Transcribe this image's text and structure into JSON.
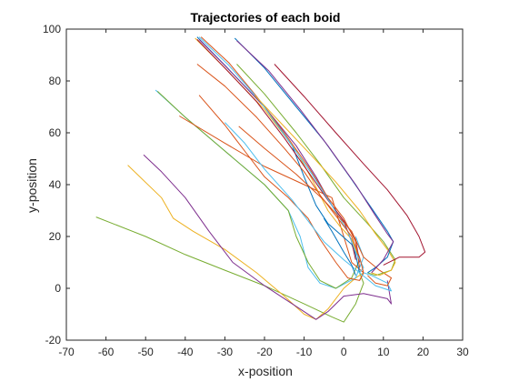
{
  "chart_data": {
    "type": "line",
    "title": "Trajectories of each boid",
    "xlabel": "x-position",
    "ylabel": "y-position",
    "xlim": [
      -70,
      30
    ],
    "ylim": [
      -20,
      100
    ],
    "xticks": [
      -70,
      -60,
      -50,
      -40,
      -30,
      -20,
      -10,
      0,
      10,
      20,
      30
    ],
    "yticks": [
      -20,
      0,
      20,
      40,
      60,
      80,
      100
    ],
    "xtick_labels": [
      "-70",
      "-60",
      "-50",
      "-40",
      "-30",
      "-20",
      "-10",
      "0",
      "10",
      "20",
      "30"
    ],
    "ytick_labels": [
      "-20",
      "0",
      "20",
      "40",
      "60",
      "80",
      "100"
    ],
    "grid": false,
    "box": true,
    "series": [
      {
        "color": "#77ac30",
        "x": [
          -62.5,
          -50,
          -40,
          -30,
          -20,
          -10,
          -3,
          0,
          3,
          5,
          4
        ],
        "y": [
          27.5,
          20,
          13,
          7,
          1,
          -6,
          -11,
          -13,
          -6,
          2,
          6
        ]
      },
      {
        "color": "#edb120",
        "x": [
          -54.5,
          -46,
          -43,
          -38,
          -30,
          -22,
          -15,
          -10,
          -7,
          -4,
          0,
          3,
          5
        ],
        "y": [
          47.5,
          35,
          27,
          22,
          15,
          6,
          -3,
          -10,
          -12,
          -8,
          0,
          4,
          6
        ]
      },
      {
        "color": "#7e2f8e",
        "x": [
          -50.5,
          -46,
          -40,
          -34,
          -28,
          -20,
          -12,
          -7,
          -4,
          0,
          5,
          11,
          12,
          11
        ],
        "y": [
          51.5,
          45,
          35,
          22,
          10,
          1,
          -7,
          -12,
          -9,
          -3,
          -2,
          -4,
          -6,
          3
        ]
      },
      {
        "color": "#4dbeee",
        "x": [
          -47.5,
          -40,
          -30,
          -20,
          -14,
          -11,
          -9,
          -6,
          -2,
          3,
          5,
          3
        ],
        "y": [
          76.5,
          66,
          53,
          40,
          30,
          20,
          8,
          2,
          0,
          4,
          12,
          20
        ]
      },
      {
        "color": "#77ac30",
        "x": [
          -47,
          -40,
          -30,
          -20,
          -14,
          -12,
          -9,
          -6,
          -2,
          2,
          4
        ],
        "y": [
          76,
          66,
          53,
          40,
          30,
          20,
          10,
          3,
          0,
          4,
          11
        ]
      },
      {
        "color": "#d95319",
        "x": [
          -41.5,
          -30,
          -20,
          -10,
          -3,
          0,
          2,
          5,
          4
        ],
        "y": [
          66.5,
          56,
          47,
          40,
          35,
          20,
          10,
          6,
          3
        ]
      },
      {
        "color": "#0072bd",
        "x": [
          -37,
          -30,
          -20,
          -13,
          -10,
          -7,
          -4,
          -1,
          2,
          3,
          4
        ],
        "y": [
          97,
          86,
          70,
          55,
          43,
          32,
          25,
          21,
          17,
          13,
          6
        ]
      },
      {
        "color": "#edb120",
        "x": [
          -37.5,
          -30,
          -20,
          -12,
          -8,
          -4,
          -1,
          2,
          4
        ],
        "y": [
          96.5,
          85,
          69,
          53,
          42,
          30,
          24,
          19,
          11
        ]
      },
      {
        "color": "#7e2f8e",
        "x": [
          -36.5,
          -30,
          -20,
          -12,
          -7,
          -3,
          0,
          3,
          4
        ],
        "y": [
          96,
          86,
          70,
          55,
          43,
          32,
          26,
          19,
          10
        ]
      },
      {
        "color": "#d95319",
        "x": [
          -36,
          -29,
          -22,
          -15,
          -9,
          -4,
          0,
          3,
          4
        ],
        "y": [
          97,
          87,
          74,
          60,
          47,
          35,
          27,
          18,
          8
        ]
      },
      {
        "color": "#a2142f",
        "x": [
          -37,
          -30,
          -22,
          -15,
          -9,
          -4,
          0,
          2,
          3
        ],
        "y": [
          96,
          85,
          72,
          58,
          45,
          34,
          26,
          18,
          11
        ]
      },
      {
        "color": "#4dbeee",
        "x": [
          -36.5,
          -29,
          -21,
          -14,
          -8,
          -3,
          1,
          3,
          5,
          4
        ],
        "y": [
          97,
          86,
          72,
          57,
          44,
          32,
          22,
          14,
          8,
          6
        ]
      },
      {
        "color": "#d95319",
        "x": [
          -37,
          -30,
          -22,
          -15,
          -10,
          -6,
          -2,
          2,
          4,
          5
        ],
        "y": [
          86.5,
          78,
          66,
          54,
          45,
          36,
          28,
          20,
          12,
          6
        ]
      },
      {
        "color": "#d95319",
        "x": [
          -36.5,
          -30,
          -25,
          -20,
          -14,
          -9,
          -6,
          -2,
          1,
          4,
          5
        ],
        "y": [
          74.5,
          63,
          53,
          43,
          35,
          27,
          19,
          10,
          4,
          3,
          6
        ]
      },
      {
        "color": "#4dbeee",
        "x": [
          -30,
          -25,
          -20,
          -13,
          -9,
          -5,
          0,
          4,
          8,
          12,
          11,
          7,
          5
        ],
        "y": [
          64,
          56,
          46,
          34,
          26,
          18,
          11,
          6,
          1,
          -1,
          2,
          5,
          6
        ]
      },
      {
        "color": "#d95319",
        "x": [
          -26.5,
          -20,
          -12,
          -5,
          2,
          5,
          9,
          12,
          11,
          8,
          6
        ],
        "y": [
          62.5,
          54,
          44,
          34,
          22,
          12,
          7,
          4,
          1,
          2,
          5
        ]
      },
      {
        "color": "#77ac30",
        "x": [
          -27,
          -20,
          -12,
          -6,
          0,
          6,
          10,
          13,
          12,
          8,
          6
        ],
        "y": [
          86.5,
          75,
          60,
          48,
          35,
          25,
          18,
          11,
          7,
          5,
          6
        ]
      },
      {
        "color": "#edb120",
        "x": [
          -22.5,
          -16,
          -8,
          -2,
          4,
          8,
          11,
          13,
          12,
          9,
          7
        ],
        "y": [
          74.5,
          64,
          51,
          41,
          30,
          21,
          15,
          10,
          7,
          5,
          6
        ]
      },
      {
        "color": "#0072bd",
        "x": [
          -27.5,
          -20,
          -12,
          -5,
          2,
          7,
          11,
          12.5,
          11,
          8,
          6
        ],
        "y": [
          96.5,
          85,
          70,
          57,
          42,
          31,
          22,
          18,
          12,
          8,
          6
        ]
      },
      {
        "color": "#7e2f8e",
        "x": [
          -27,
          -19,
          -11,
          -4,
          3,
          8,
          11,
          12.5,
          10,
          7
        ],
        "y": [
          95.5,
          84,
          69,
          55,
          40,
          28,
          21,
          18,
          11,
          6
        ]
      },
      {
        "color": "#a2142f",
        "x": [
          -17.5,
          -10,
          -2,
          5,
          11,
          16,
          19,
          20.5,
          19,
          14,
          10
        ],
        "y": [
          86.5,
          74,
          60,
          48,
          38,
          28,
          20,
          14,
          12,
          12,
          9
        ]
      },
      {
        "color": "#0072bd",
        "x": [
          -5,
          -3,
          0,
          2,
          3
        ],
        "y": [
          27,
          22,
          14,
          9,
          5
        ]
      }
    ]
  }
}
